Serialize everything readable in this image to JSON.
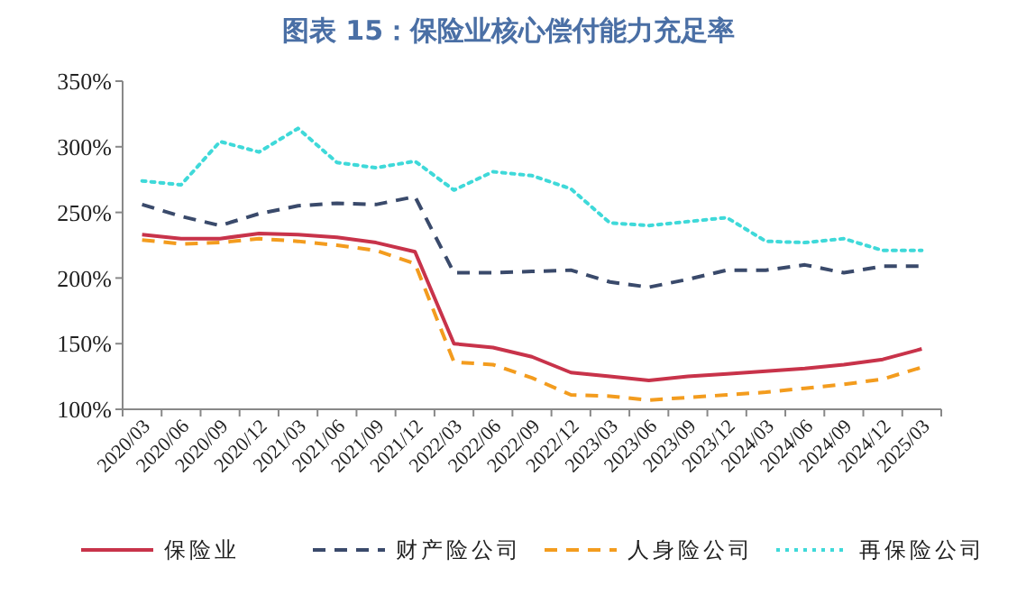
{
  "chart_data": {
    "type": "line",
    "title": "图表 15：保险业核心偿付能力充足率",
    "categories": [
      "2020/03",
      "2020/06",
      "2020/09",
      "2020/12",
      "2021/03",
      "2021/06",
      "2021/09",
      "2021/12",
      "2022/03",
      "2022/06",
      "2022/09",
      "2022/12",
      "2023/03",
      "2023/06",
      "2023/09",
      "2023/12",
      "2024/03",
      "2024/06",
      "2024/09",
      "2024/12",
      "2025/03"
    ],
    "series": [
      {
        "name": "保险业",
        "color": "#c8334a",
        "line_style": "solid",
        "values": [
          233,
          230,
          230,
          234,
          233,
          231,
          227,
          220,
          150,
          147,
          140,
          128,
          125,
          122,
          125,
          127,
          129,
          131,
          134,
          138,
          146
        ]
      },
      {
        "name": "财产险公司",
        "color": "#3a4a6b",
        "line_style": "dashed",
        "values": [
          256,
          247,
          240,
          249,
          255,
          257,
          256,
          262,
          204,
          204,
          205,
          206,
          197,
          193,
          199,
          206,
          206,
          210,
          204,
          209,
          209
        ]
      },
      {
        "name": "人身险公司",
        "color": "#f39c1e",
        "line_style": "dashed",
        "values": [
          229,
          226,
          227,
          230,
          228,
          225,
          221,
          211,
          136,
          134,
          124,
          111,
          110,
          107,
          109,
          111,
          113,
          116,
          119,
          123,
          132
        ]
      },
      {
        "name": "再保险公司",
        "color": "#3fd9d9",
        "line_style": "dotted",
        "values": [
          274,
          271,
          304,
          296,
          314,
          288,
          284,
          289,
          267,
          281,
          278,
          268,
          242,
          240,
          243,
          246,
          228,
          227,
          230,
          221,
          221
        ]
      }
    ],
    "ylim": [
      100,
      350
    ],
    "yticks": [
      {
        "value": 100,
        "label": "100%"
      },
      {
        "value": 150,
        "label": "150%"
      },
      {
        "value": 200,
        "label": "200%"
      },
      {
        "value": 250,
        "label": "250%"
      },
      {
        "value": 300,
        "label": "300%"
      },
      {
        "value": 350,
        "label": "350%"
      }
    ],
    "grid": false,
    "legend": "bottom",
    "marker": "none"
  }
}
